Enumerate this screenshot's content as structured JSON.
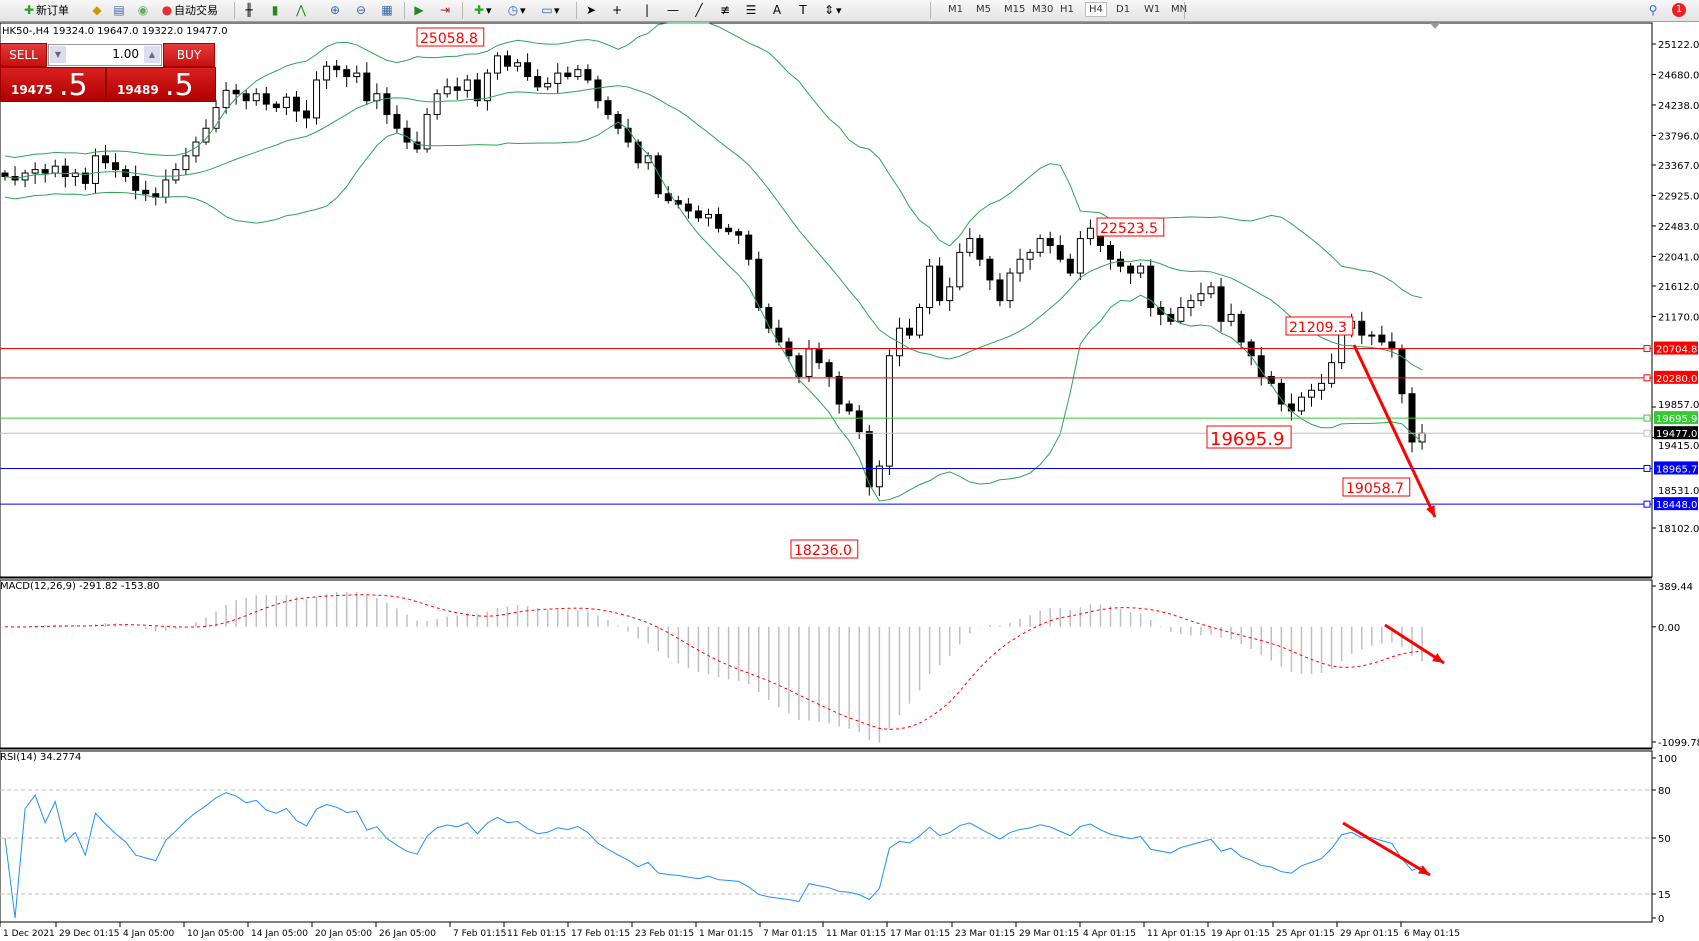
{
  "toolbar": {
    "new_order_label": "新订单",
    "auto_trading_label": "自动交易",
    "timeframes": [
      "M1",
      "M5",
      "M15",
      "M30",
      "H1",
      "H4",
      "D1",
      "W1",
      "MN"
    ],
    "active_timeframe": "H4",
    "notification_count": "1",
    "icons": [
      "new-order-icon",
      "gold-icon",
      "history-icon",
      "signals-icon",
      "auto-trading-icon",
      "bar-chart-icon",
      "candlestick-icon",
      "line-chart-icon",
      "zoom-in-icon",
      "zoom-out-icon",
      "tile-windows-icon",
      "scroll-icon",
      "shift-icon",
      "indicators-icon",
      "periods-icon",
      "templates-icon",
      "cursor-icon",
      "crosshair-icon",
      "vertical-line-icon",
      "horizontal-line-icon",
      "trendline-icon",
      "fibonacci-icon",
      "channel-icon",
      "text-icon",
      "label-icon",
      "arrows-icon",
      "search-icon",
      "notification-icon"
    ]
  },
  "chart": {
    "symbol_header": "HK50-,H4  19324.0 19647.0 19322.0 19477.0",
    "price_ticks": [
      "25122.0",
      "24680.0",
      "24238.0",
      "23796.0",
      "23367.0",
      "22925.0",
      "22483.0",
      "22041.0",
      "21612.0",
      "21170.0",
      "19857.0",
      "19415.0",
      "18531.0",
      "18102.0"
    ],
    "price_levels": [
      {
        "label": "20704.8",
        "value": 20704.8,
        "color": "#ff0000"
      },
      {
        "label": "20280.0",
        "value": 20280.0,
        "color": "#ff0000"
      },
      {
        "label": "19695.9",
        "value": 19695.9,
        "color": "#33cc33"
      },
      {
        "label": "19477.0",
        "value": 19477.0,
        "color": "#c0c0c0",
        "tag_color": "#000000"
      },
      {
        "label": "18965.7",
        "value": 18965.7,
        "color": "#0000ff"
      },
      {
        "label": "18448.0",
        "value": 18448.0,
        "color": "#0000ff"
      }
    ],
    "annotations": [
      "25058.8",
      "22523.5",
      "21209.3",
      "19695.9",
      "19058.7",
      "18236.0"
    ],
    "time_labels": [
      "1 Dec 2021",
      "29 Dec 01:15",
      "4 Jan 05:00",
      "10 Jan 05:00",
      "14 Jan 05:00",
      "20 Jan 05:00",
      "26 Jan 05:00",
      "7 Feb 01:15",
      "11 Feb 01:15",
      "17 Feb 01:15",
      "23 Feb 01:15",
      "1 Mar 01:15",
      "7 Mar 01:15",
      "11 Mar 01:15",
      "17 Mar 01:15",
      "23 Mar 01:15",
      "29 Mar 01:15",
      "4 Apr 01:15",
      "11 Apr 01:15",
      "19 Apr 01:15",
      "25 Apr 01:15",
      "29 Apr 01:15",
      "6 May 01:15"
    ],
    "colors": {
      "bands": "#2ea35a",
      "macd_hist": "#c0c0c0",
      "macd_signal": "#ff0000",
      "rsi": "#1e90ff",
      "arrow": "#ff0000",
      "annotation": "#ff0000"
    }
  },
  "trade_panel": {
    "sell_label": "SELL",
    "buy_label": "BUY",
    "lot": "1.00",
    "sell_price_main": "19475",
    "sell_price_pips": ".5",
    "buy_price_main": "19489",
    "buy_price_pips": ".5"
  },
  "macd": {
    "label": "MACD(12,26,9) -291.82 -153.80",
    "ticks": [
      "389.44",
      "0.00",
      "-1099.78"
    ]
  },
  "rsi": {
    "label": "RSI(14) 34.2774",
    "ticks": [
      "100",
      "80",
      "50",
      "15",
      "0"
    ]
  },
  "chart_data": {
    "type": "candlestick",
    "symbol": "HK50-",
    "timeframe": "H4",
    "ylim": [
      18102,
      25122
    ],
    "closes": [
      23200,
      23150,
      23250,
      23300,
      23250,
      23350,
      23200,
      23250,
      23100,
      23500,
      23400,
      23300,
      23200,
      23000,
      22950,
      22900,
      23150,
      23300,
      23500,
      23700,
      23900,
      24200,
      24450,
      24400,
      24300,
      24400,
      24250,
      24200,
      24350,
      24150,
      24050,
      24600,
      24800,
      24750,
      24650,
      24700,
      24300,
      24400,
      24100,
      23900,
      23700,
      23600,
      24100,
      24400,
      24500,
      24450,
      24600,
      24300,
      24700,
      24950,
      24800,
      24850,
      24650,
      24500,
      24550,
      24700,
      24650,
      24750,
      24600,
      24300,
      24100,
      23900,
      23700,
      23400,
      23500,
      22950,
      22850,
      22800,
      22700,
      22600,
      22650,
      22450,
      22400,
      22350,
      22000,
      21300,
      21000,
      20800,
      20600,
      20300,
      20700,
      20500,
      20300,
      19900,
      19800,
      19500,
      18700,
      19000,
      20600,
      21000,
      20900,
      21300,
      21900,
      21400,
      21600,
      22100,
      22300,
      22000,
      21700,
      21400,
      21800,
      22000,
      22100,
      22300,
      22200,
      22000,
      21800,
      22300,
      22450,
      22200,
      22000,
      21900,
      21800,
      21900,
      21300,
      21200,
      21100,
      21300,
      21400,
      21500,
      21600,
      21100,
      21200,
      20800,
      20600,
      20300,
      20200,
      19900,
      19800,
      20000,
      20100,
      20200,
      20500,
      21000,
      21100,
      20900,
      20900,
      20800,
      20700,
      20050,
      19350,
      19477
    ]
  }
}
